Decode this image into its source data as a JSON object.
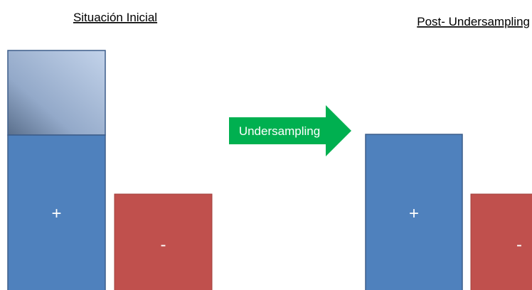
{
  "left": {
    "title": "Situación Inicial",
    "positive": "+",
    "negative": "-"
  },
  "arrow": {
    "label": "Undersampling"
  },
  "right": {
    "title": "Post- Undersampling",
    "positive": "+",
    "negative": "-"
  }
}
